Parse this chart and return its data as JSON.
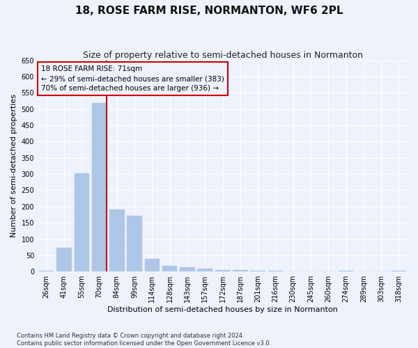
{
  "title": "18, ROSE FARM RISE, NORMANTON, WF6 2PL",
  "subtitle": "Size of property relative to semi-detached houses in Normanton",
  "xlabel": "Distribution of semi-detached houses by size in Normanton",
  "ylabel": "Number of semi-detached properties",
  "categories": [
    "26sqm",
    "41sqm",
    "55sqm",
    "70sqm",
    "84sqm",
    "99sqm",
    "114sqm",
    "128sqm",
    "143sqm",
    "157sqm",
    "172sqm",
    "187sqm",
    "201sqm",
    "216sqm",
    "230sqm",
    "245sqm",
    "260sqm",
    "274sqm",
    "289sqm",
    "303sqm",
    "318sqm"
  ],
  "values": [
    2,
    73,
    303,
    519,
    190,
    172,
    40,
    17,
    14,
    10,
    5,
    4,
    3,
    3,
    1,
    1,
    0,
    3,
    0,
    1,
    3
  ],
  "bar_color": "#aec6e8",
  "bar_edgecolor": "#aec6e8",
  "vline_x_index": 3,
  "vline_color": "#cc0000",
  "vline_label": "18 ROSE FARM RISE: 71sqm",
  "annotation_line1": "← 29% of semi-detached houses are smaller (383)",
  "annotation_line2": "70% of semi-detached houses are larger (936) →",
  "annotation_box_edgecolor": "#cc0000",
  "ylim": [
    0,
    650
  ],
  "yticks": [
    0,
    50,
    100,
    150,
    200,
    250,
    300,
    350,
    400,
    450,
    500,
    550,
    600,
    650
  ],
  "footer_line1": "Contains HM Land Registry data © Crown copyright and database right 2024.",
  "footer_line2": "Contains public sector information licensed under the Open Government Licence v3.0.",
  "bg_color": "#eef2fb",
  "grid_color": "#ffffff",
  "title_fontsize": 11,
  "subtitle_fontsize": 9,
  "tick_fontsize": 7,
  "ylabel_fontsize": 8,
  "xlabel_fontsize": 8,
  "annotation_fontsize": 7.5,
  "footer_fontsize": 6
}
